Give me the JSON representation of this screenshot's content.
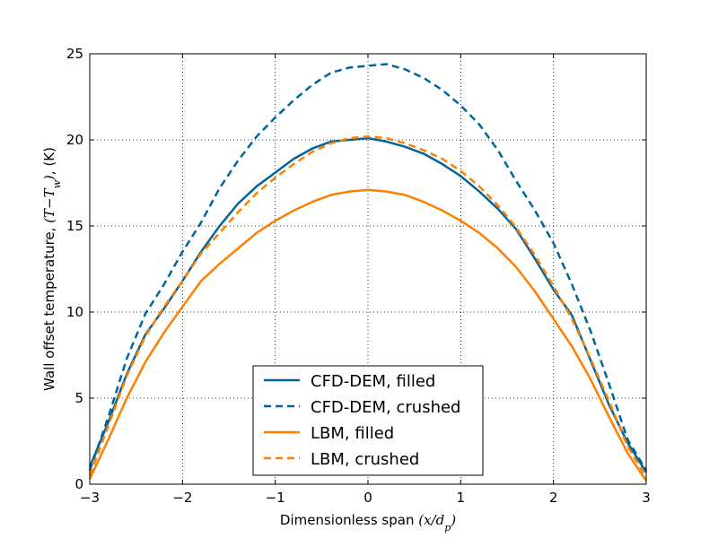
{
  "chart_data": {
    "type": "line",
    "xlabel": "Dimensionless span (x/d_p)",
    "ylabel": "Wall offset temperature, (T−T_w), (K)",
    "xlim": [
      -3,
      3
    ],
    "ylim": [
      0,
      25
    ],
    "xticks": [
      -3,
      -2,
      -1,
      0,
      1,
      2,
      3
    ],
    "yticks": [
      0,
      5,
      10,
      15,
      20,
      25
    ],
    "xtick_labels": [
      "−3",
      "−2",
      "−1",
      "0",
      "1",
      "2",
      "3"
    ],
    "ytick_labels": [
      "0",
      "5",
      "10",
      "15",
      "20",
      "25"
    ],
    "grid": true,
    "legend_position": "bottom-center",
    "series": [
      {
        "name": "CFD-DEM, filled",
        "color": "#006699",
        "dash": "solid",
        "x": [
          -3.0,
          -2.8,
          -2.6,
          -2.4,
          -2.2,
          -2.0,
          -1.8,
          -1.6,
          -1.4,
          -1.2,
          -1.0,
          -0.8,
          -0.6,
          -0.4,
          -0.2,
          0.0,
          0.2,
          0.4,
          0.6,
          0.8,
          1.0,
          1.2,
          1.4,
          1.6,
          1.8,
          2.0,
          2.2,
          2.4,
          2.6,
          2.8,
          3.0
        ],
        "y": [
          1.0,
          3.6,
          6.4,
          8.7,
          10.2,
          11.8,
          13.5,
          15.0,
          16.3,
          17.3,
          18.1,
          18.9,
          19.5,
          19.9,
          20.0,
          20.1,
          19.9,
          19.6,
          19.2,
          18.6,
          17.9,
          17.0,
          16.0,
          14.8,
          13.1,
          11.3,
          9.8,
          7.2,
          4.6,
          2.4,
          0.7
        ]
      },
      {
        "name": "CFD-DEM, crushed",
        "color": "#006699",
        "dash": "dashed",
        "x": [
          -3.0,
          -2.8,
          -2.6,
          -2.4,
          -2.2,
          -2.0,
          -1.8,
          -1.6,
          -1.4,
          -1.2,
          -1.0,
          -0.8,
          -0.6,
          -0.4,
          -0.2,
          0.0,
          0.2,
          0.4,
          0.6,
          0.8,
          1.0,
          1.2,
          1.4,
          1.6,
          1.8,
          2.0,
          2.2,
          2.4,
          2.6,
          2.8,
          3.0
        ],
        "y": [
          0.8,
          3.9,
          7.3,
          9.9,
          11.6,
          13.5,
          15.2,
          17.2,
          18.8,
          20.2,
          21.3,
          22.3,
          23.2,
          23.9,
          24.2,
          24.3,
          24.4,
          24.1,
          23.6,
          22.9,
          22.0,
          20.9,
          19.4,
          17.6,
          15.9,
          14.0,
          11.6,
          8.9,
          5.8,
          2.6,
          0.8
        ]
      },
      {
        "name": "LBM, filled",
        "color": "#ff8000",
        "dash": "solid",
        "x": [
          -3.0,
          -2.8,
          -2.6,
          -2.4,
          -2.2,
          -2.0,
          -1.8,
          -1.6,
          -1.4,
          -1.2,
          -1.0,
          -0.8,
          -0.6,
          -0.4,
          -0.2,
          0.0,
          0.2,
          0.4,
          0.6,
          0.8,
          1.0,
          1.2,
          1.4,
          1.6,
          1.8,
          2.0,
          2.2,
          2.4,
          2.6,
          2.8,
          3.0
        ],
        "y": [
          0.3,
          2.6,
          5.0,
          7.1,
          8.8,
          10.3,
          11.8,
          12.8,
          13.7,
          14.6,
          15.3,
          15.9,
          16.4,
          16.8,
          17.0,
          17.1,
          17.0,
          16.8,
          16.4,
          15.9,
          15.3,
          14.6,
          13.7,
          12.6,
          11.2,
          9.6,
          8.0,
          6.1,
          3.9,
          1.8,
          0.2
        ]
      },
      {
        "name": "LBM, crushed",
        "color": "#ff8000",
        "dash": "dashed",
        "x": [
          -3.0,
          -2.8,
          -2.6,
          -2.4,
          -2.2,
          -2.0,
          -1.8,
          -1.6,
          -1.4,
          -1.2,
          -1.0,
          -0.8,
          -0.6,
          -0.4,
          -0.2,
          0.0,
          0.2,
          0.4,
          0.6,
          0.8,
          1.0,
          1.2,
          1.4,
          1.6,
          1.8,
          2.0,
          2.2,
          2.4,
          2.6,
          2.8,
          3.0
        ],
        "y": [
          0.5,
          3.4,
          6.3,
          8.6,
          10.3,
          11.8,
          13.4,
          14.6,
          15.8,
          16.9,
          17.8,
          18.6,
          19.3,
          19.8,
          20.1,
          20.2,
          20.1,
          19.8,
          19.4,
          18.9,
          18.2,
          17.3,
          16.2,
          14.9,
          13.3,
          11.5,
          9.6,
          7.3,
          4.8,
          2.2,
          0.4
        ]
      }
    ]
  }
}
